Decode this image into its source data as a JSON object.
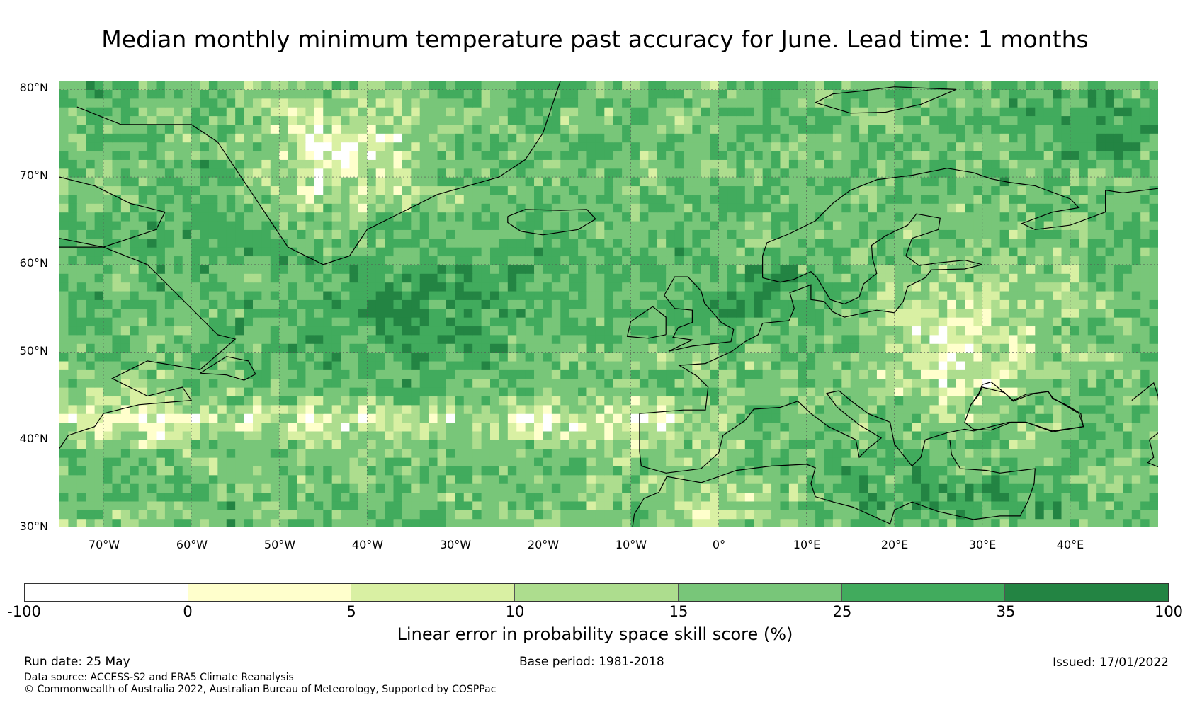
{
  "title": "Median monthly minimum temperature past accuracy for June. Lead time: 1 months",
  "map": {
    "lat_labels": [
      "80°N",
      "70°N",
      "60°N",
      "50°N",
      "40°N",
      "30°N"
    ],
    "lon_labels": [
      "70°W",
      "60°W",
      "50°W",
      "40°W",
      "30°W",
      "20°W",
      "10°W",
      "0°",
      "10°E",
      "20°E",
      "30°E",
      "40°E"
    ],
    "extent": {
      "lon_min": -75,
      "lon_max": 50,
      "lat_min": 30,
      "lat_max": 81
    },
    "colors": {
      "-100_0": "#ffffff",
      "0_5": "#ffffcc",
      "5_10": "#d9f0a3",
      "10_15": "#addd8e",
      "15_25": "#78c679",
      "25_35": "#41ab5d",
      "35_100": "#238443"
    }
  },
  "colorbar": {
    "ticks": [
      "-100",
      "0",
      "5",
      "10",
      "15",
      "25",
      "35",
      "100"
    ],
    "colors": [
      "#ffffff",
      "#ffffcc",
      "#d9f0a3",
      "#addd8e",
      "#78c679",
      "#41ab5d",
      "#238443"
    ],
    "label": "Linear error in probability space skill score (%)"
  },
  "footer": {
    "run_date": "Run date: 25 May",
    "base_period": "Base period: 1981-2018",
    "issued": "Issued: 17/01/2022",
    "data_source": "Data source: ACCESS-S2 and ERA5 Climate Reanalysis",
    "copyright": "© Commonwealth of Australia 2022, Australian Bureau of Meteorology, Supported by COSPPac"
  }
}
